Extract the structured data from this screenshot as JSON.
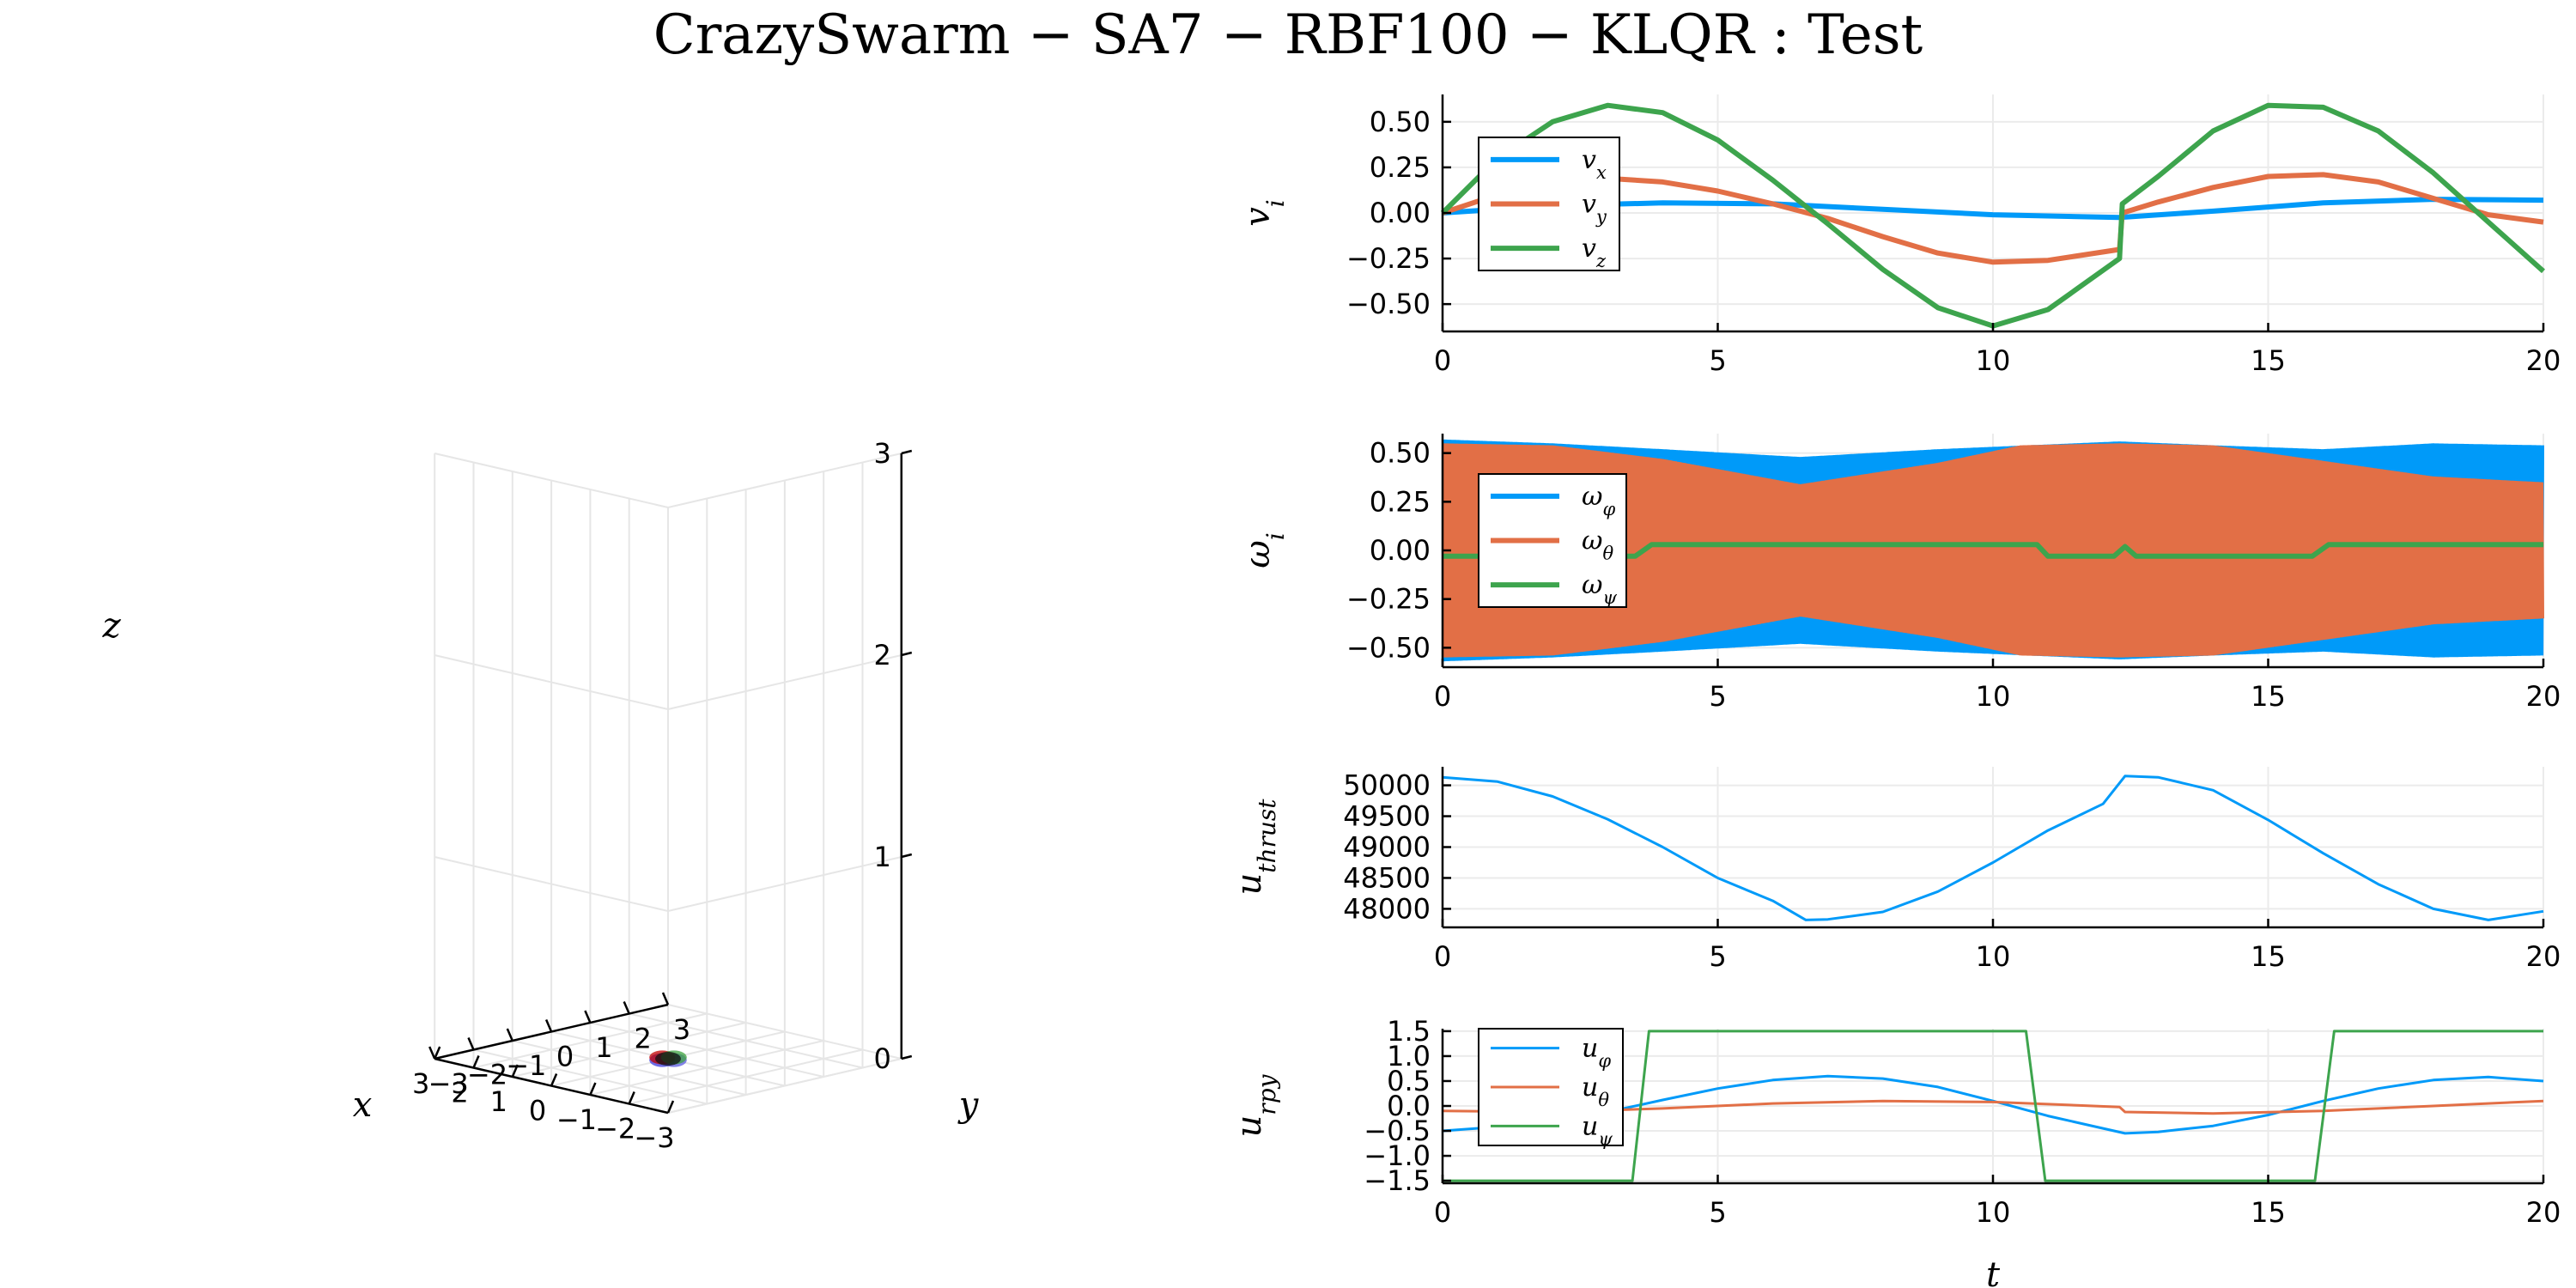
{
  "title": "CrazySwarm − SA7 − RBF100 − KLQR : Test",
  "chart_data": [
    {
      "type": "scatter3d",
      "xlabel": "x",
      "ylabel": "y",
      "zlabel": "z",
      "xlim": [
        -3,
        3
      ],
      "ylim": [
        -3,
        3
      ],
      "zlim": [
        0,
        3
      ],
      "xticks": [
        "−3",
        "−2",
        "−1",
        "0",
        "1",
        "2",
        "3"
      ],
      "yticks": [
        "−3",
        "−2",
        "−1",
        "0",
        "1",
        "2",
        "3"
      ],
      "zticks": [
        "0",
        "1",
        "2",
        "3"
      ],
      "grid": true,
      "markers": [
        {
          "x": 0,
          "y": -0.15,
          "z": 0,
          "color": "#3b3bde"
        },
        {
          "x": -0.15,
          "y": 0,
          "z": 0,
          "color": "#5a5ae0"
        },
        {
          "x": 0.15,
          "y": 0,
          "z": 0,
          "color": "#c00000"
        },
        {
          "x": 0,
          "y": 0.15,
          "z": 0,
          "color": "#3da33d"
        },
        {
          "x": 0,
          "y": 0,
          "z": 0,
          "color": "#111111"
        }
      ]
    },
    {
      "type": "line",
      "ylabel": "v_i",
      "xlim": [
        0,
        20
      ],
      "ylim": [
        -0.65,
        0.65
      ],
      "xticks": [
        0,
        5,
        10,
        15,
        20
      ],
      "yticks": [
        0.5,
        0.25,
        0.0,
        -0.25,
        -0.5
      ],
      "ytick_labels": [
        "0.50",
        "0.25",
        "0.00",
        "−0.25",
        "−0.50"
      ],
      "legend": "top-left",
      "series": [
        {
          "name": "v_x",
          "color": "#009af9",
          "x": [
            0,
            2,
            4,
            6,
            8,
            10,
            12.3,
            14,
            16,
            18,
            20
          ],
          "y": [
            0.0,
            0.04,
            0.055,
            0.05,
            0.02,
            -0.01,
            -0.025,
            0.01,
            0.055,
            0.075,
            0.07
          ]
        },
        {
          "name": "v_y",
          "color": "#e26f46",
          "x": [
            0,
            1,
            2,
            3,
            4,
            5,
            6,
            7,
            8,
            9,
            10,
            11,
            12.3,
            12.35,
            13,
            14,
            15,
            16,
            17,
            18,
            19,
            20
          ],
          "y": [
            0.0,
            0.1,
            0.16,
            0.19,
            0.17,
            0.12,
            0.05,
            -0.03,
            -0.13,
            -0.22,
            -0.27,
            -0.26,
            -0.2,
            0.0,
            0.06,
            0.14,
            0.2,
            0.21,
            0.17,
            0.08,
            -0.01,
            -0.05
          ]
        },
        {
          "name": "v_z",
          "color": "#3da44d",
          "x": [
            0,
            1,
            2,
            3,
            4,
            5,
            6,
            7,
            8,
            9,
            10,
            11,
            12.3,
            12.35,
            13,
            14,
            15,
            16,
            17,
            18,
            19,
            20
          ],
          "y": [
            0.0,
            0.3,
            0.5,
            0.59,
            0.55,
            0.4,
            0.18,
            -0.06,
            -0.31,
            -0.52,
            -0.62,
            -0.53,
            -0.25,
            0.05,
            0.2,
            0.45,
            0.59,
            0.58,
            0.45,
            0.22,
            -0.05,
            -0.32
          ]
        }
      ]
    },
    {
      "type": "line",
      "ylabel": "ω_i",
      "xlim": [
        0,
        20
      ],
      "ylim": [
        -0.6,
        0.6
      ],
      "xticks": [
        0,
        5,
        10,
        15,
        20
      ],
      "yticks": [
        0.5,
        0.25,
        0.0,
        -0.25,
        -0.5
      ],
      "ytick_labels": [
        "0.50",
        "0.25",
        "0.00",
        "−0.25",
        "−0.50"
      ],
      "legend": "top-left",
      "series": [
        {
          "name": "ω_φ",
          "color": "#009af9",
          "x": [
            0,
            2,
            4,
            6.5,
            9,
            12.3,
            14,
            16,
            18,
            20
          ],
          "amp": [
            0.57,
            0.55,
            0.52,
            0.48,
            0.52,
            0.56,
            0.54,
            0.52,
            0.55,
            0.54
          ]
        },
        {
          "name": "ω_θ",
          "color": "#e26f46",
          "x": [
            0,
            2,
            4,
            6.5,
            9,
            10.5,
            12.3,
            14,
            16,
            18,
            20
          ],
          "amp": [
            0.55,
            0.54,
            0.47,
            0.34,
            0.45,
            0.54,
            0.55,
            0.54,
            0.46,
            0.38,
            0.35
          ]
        },
        {
          "name": "ω_ψ",
          "color": "#3da44d",
          "x": [
            0,
            3.5,
            3.8,
            10.8,
            11.0,
            12.2,
            12.4,
            12.6,
            15.8,
            16.1,
            20
          ],
          "y": [
            -0.03,
            -0.03,
            0.03,
            0.03,
            -0.03,
            -0.03,
            0.02,
            -0.03,
            -0.03,
            0.03,
            0.03
          ]
        }
      ]
    },
    {
      "type": "line",
      "ylabel": "u_thrust",
      "xlim": [
        0,
        20
      ],
      "ylim": [
        47700,
        50300
      ],
      "xticks": [
        0,
        5,
        10,
        15,
        20
      ],
      "yticks": [
        50000,
        49500,
        49000,
        48500,
        48000
      ],
      "ytick_labels": [
        "50000",
        "49500",
        "49000",
        "48500",
        "48000"
      ],
      "series": [
        {
          "name": "",
          "color": "#009af9",
          "x": [
            0,
            1,
            2,
            3,
            4,
            5,
            6,
            6.6,
            7,
            8,
            9,
            10,
            11,
            12,
            12.4,
            13,
            14,
            15,
            16,
            17,
            18,
            19,
            20
          ],
          "y": [
            50130,
            50060,
            49820,
            49450,
            49000,
            48500,
            48130,
            47820,
            47830,
            47950,
            48280,
            48750,
            49270,
            49700,
            50150,
            50130,
            49920,
            49440,
            48900,
            48400,
            48000,
            47820,
            47960
          ]
        }
      ]
    },
    {
      "type": "line",
      "ylabel": "u_rpy",
      "xlim": [
        0,
        20
      ],
      "ylim": [
        -1.55,
        1.55
      ],
      "xticks": [
        0,
        5,
        10,
        15,
        20
      ],
      "yticks": [
        1.5,
        1.0,
        0.5,
        0.0,
        -0.5,
        -1.0,
        -1.5
      ],
      "ytick_labels": [
        "1.5",
        "1.0",
        "0.5",
        "0.0",
        "−0.5",
        "−1.0",
        "−1.5"
      ],
      "legend": "top-left",
      "series": [
        {
          "name": "u_φ",
          "color": "#009af9",
          "x": [
            0,
            1,
            2,
            3,
            4,
            5,
            6,
            7,
            8,
            9,
            10,
            11,
            12,
            12.4,
            13,
            14,
            15,
            16,
            17,
            18,
            19,
            20
          ],
          "y": [
            -0.5,
            -0.42,
            -0.3,
            -0.12,
            0.12,
            0.35,
            0.52,
            0.6,
            0.55,
            0.38,
            0.1,
            -0.2,
            -0.45,
            -0.55,
            -0.52,
            -0.4,
            -0.18,
            0.1,
            0.35,
            0.52,
            0.58,
            0.5
          ]
        },
        {
          "name": "u_θ",
          "color": "#e26f46",
          "x": [
            0,
            2,
            4,
            6,
            8,
            10,
            12.3,
            12.4,
            14,
            16,
            18,
            20
          ],
          "y": [
            -0.1,
            -0.12,
            -0.05,
            0.05,
            0.1,
            0.08,
            -0.02,
            -0.12,
            -0.15,
            -0.1,
            0.0,
            0.1
          ]
        },
        {
          "name": "u_ψ",
          "color": "#3da44d",
          "x": [
            0,
            3.45,
            3.75,
            10.6,
            10.95,
            15.85,
            16.2,
            20
          ],
          "y": [
            -1.5,
            -1.5,
            1.5,
            1.5,
            -1.5,
            -1.5,
            1.5,
            1.5
          ]
        }
      ]
    }
  ]
}
